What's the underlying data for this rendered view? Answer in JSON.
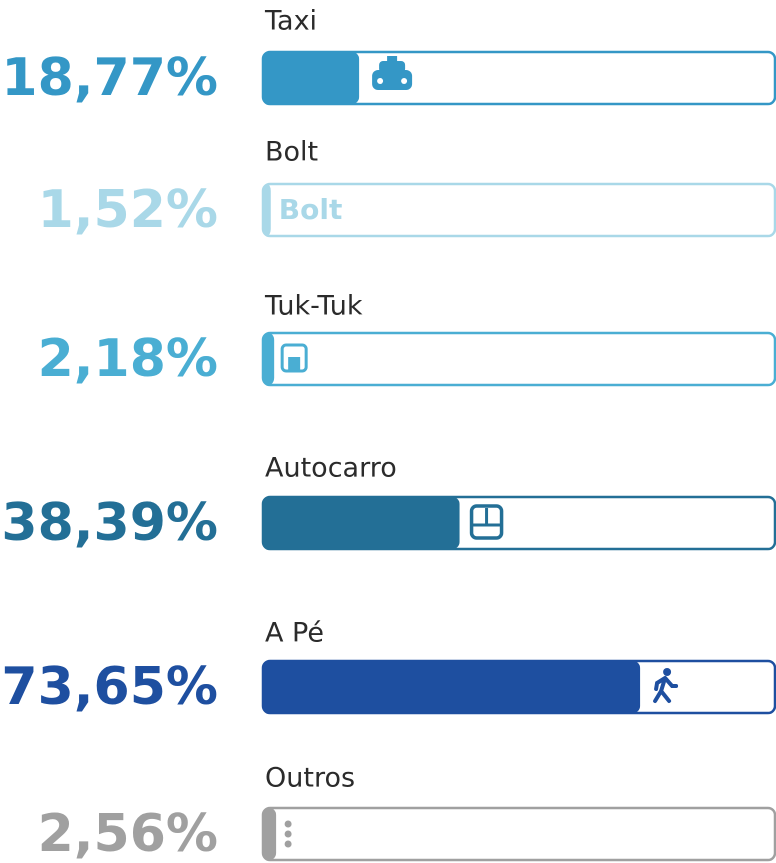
{
  "chart_data": {
    "type": "bar",
    "orientation": "horizontal",
    "categories": [
      "Taxi",
      "Bolt",
      "Tuk-Tuk",
      "Autocarro",
      "A Pé",
      "Outros"
    ],
    "values": [
      18.77,
      1.52,
      2.18,
      38.39,
      73.65,
      2.56
    ],
    "value_labels": [
      "18,77%",
      "1,52%",
      "2,18%",
      "38,39%",
      "73,65%",
      "2,56%"
    ],
    "colors": [
      "#3497c6",
      "#a9d8e8",
      "#4aaed3",
      "#236f96",
      "#1e4fa0",
      "#a0a0a0"
    ],
    "xlim": [
      0,
      100
    ]
  }
}
